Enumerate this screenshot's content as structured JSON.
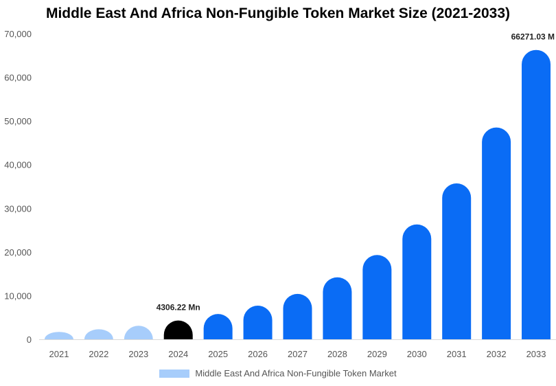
{
  "chart_data": {
    "type": "bar",
    "title": "Middle East And Africa Non-Fungible Token Market Size (2021-2033)",
    "categories": [
      "2021",
      "2022",
      "2023",
      "2024",
      "2025",
      "2026",
      "2027",
      "2028",
      "2029",
      "2030",
      "2031",
      "2032",
      "2033"
    ],
    "series": [
      {
        "name": "Middle East And Africa Non-Fungible Token Market",
        "values": [
          1700,
          2300,
          3100,
          4306.22,
          5800,
          7700,
          10400,
          14200,
          19300,
          26300,
          35700,
          48500,
          66271.03
        ]
      }
    ],
    "bar_colors": [
      "#a7cdfb",
      "#a7cdfb",
      "#a7cdfb",
      "#000000",
      "#0a6cf5",
      "#0a6cf5",
      "#0a6cf5",
      "#0a6cf5",
      "#0a6cf5",
      "#0a6cf5",
      "#0a6cf5",
      "#0a6cf5",
      "#0a6cf5"
    ],
    "legend_color": "#a7cdfb",
    "annotations": [
      {
        "index": 3,
        "text": "4306.22 Mn"
      },
      {
        "index": 12,
        "text": "66271.03 M"
      }
    ],
    "yticks": [
      "0",
      "10,000",
      "20,000",
      "30,000",
      "40,000",
      "50,000",
      "60,000",
      "70,000"
    ],
    "ylim": [
      0,
      70000
    ],
    "grid": false,
    "legend_position": "bottom",
    "xlabel": "",
    "ylabel": ""
  }
}
